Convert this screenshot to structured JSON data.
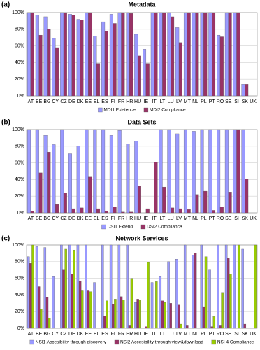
{
  "chart_data": [
    {
      "type": "bar",
      "panel": "(a)",
      "title": "Metadata",
      "categories": [
        "AT",
        "BE",
        "BG",
        "CY",
        "CZ",
        "DE",
        "DK",
        "EE",
        "EL",
        "ES",
        "FI",
        "FR",
        "HR",
        "HU",
        "IE",
        "IT",
        "LT",
        "LU",
        "LV",
        "MT",
        "NL",
        "PL",
        "PT",
        "RO",
        "SE",
        "SI",
        "SK",
        "UK"
      ],
      "series": [
        {
          "name": "MDI1 Existence",
          "color": "#9999ff",
          "values": [
            100,
            97,
            95,
            69,
            100,
            98,
            92,
            100,
            72,
            89,
            98,
            100,
            100,
            74,
            56,
            100,
            100,
            100,
            82,
            100,
            100,
            100,
            100,
            73,
            100,
            100,
            14,
            0
          ]
        },
        {
          "name": "MDI2 Compliance",
          "color": "#993366",
          "values": [
            100,
            73,
            80,
            58,
            100,
            97,
            91,
            100,
            39,
            78,
            87,
            100,
            99,
            48,
            39,
            100,
            100,
            95,
            64,
            100,
            100,
            100,
            100,
            71,
            100,
            100,
            14,
            0
          ]
        }
      ],
      "ylim": [
        0,
        100
      ],
      "yticks": [
        {
          "value": 0,
          "label": "0%"
        },
        {
          "value": 20,
          "label": "20%"
        },
        {
          "value": 40,
          "label": "40%"
        },
        {
          "value": 60,
          "label": "60%"
        },
        {
          "value": 80,
          "label": "80%"
        },
        {
          "value": 100,
          "label": "100%"
        }
      ],
      "grid": true
    },
    {
      "type": "bar",
      "panel": "(b)",
      "title": "Data Sets",
      "categories": [
        "AT",
        "BE",
        "BG",
        "CY",
        "CZ",
        "DE",
        "DK",
        "EE",
        "EL",
        "ES",
        "FI",
        "FR",
        "HR",
        "HU",
        "IE",
        "IT",
        "LT",
        "LU",
        "LV",
        "MT",
        "NL",
        "PL",
        "PT",
        "RO",
        "SE",
        "SI",
        "SK",
        "UK"
      ],
      "series": [
        {
          "name": "DSI1 Extend",
          "color": "#9999ff",
          "values": [
            100,
            100,
            93,
            82,
            100,
            71,
            80,
            100,
            100,
            100,
            93,
            99,
            83,
            86,
            0,
            0,
            100,
            100,
            95,
            100,
            98,
            100,
            100,
            100,
            100,
            100,
            100,
            0
          ]
        },
        {
          "name": "DSI2 Compliance",
          "color": "#993366",
          "values": [
            2,
            48,
            73,
            10,
            24,
            5,
            6,
            43,
            5,
            2,
            7,
            1,
            1,
            32,
            5,
            61,
            31,
            6,
            5,
            4,
            22,
            26,
            3,
            7,
            25,
            100,
            41,
            0
          ]
        }
      ],
      "ylim": [
        0,
        100
      ],
      "yticks": [
        {
          "value": 0,
          "label": "0%"
        },
        {
          "value": 20,
          "label": "20%"
        },
        {
          "value": 40,
          "label": "40%"
        },
        {
          "value": 60,
          "label": "60%"
        },
        {
          "value": 80,
          "label": "80%"
        },
        {
          "value": 100,
          "label": "100%"
        }
      ],
      "grid": true
    },
    {
      "type": "bar",
      "panel": "(c)",
      "title": "Network Services",
      "categories": [
        "AT",
        "BE",
        "BG",
        "CY",
        "CZ",
        "DE",
        "DK",
        "EE",
        "EL",
        "ES",
        "FI",
        "FR",
        "HR",
        "HU",
        "IE",
        "IT",
        "LT",
        "LU",
        "LV",
        "MT",
        "NL",
        "PL",
        "PT",
        "RO",
        "SE",
        "SI",
        "SK",
        "UK"
      ],
      "series": [
        {
          "name": "NSI1 Accesibility through discovery",
          "color": "#9999ff",
          "values": [
            86,
            98,
            97,
            62,
            100,
            100,
            100,
            100,
            55,
            100,
            100,
            100,
            100,
            31,
            0,
            55,
            62,
            80,
            83,
            100,
            88,
            100,
            70,
            100,
            100,
            100,
            95,
            0
          ]
        },
        {
          "name": "NSI2 Accesibility through view&download",
          "color": "#993366",
          "values": [
            78,
            50,
            37,
            0,
            70,
            65,
            57,
            45,
            0,
            15,
            29,
            38,
            3,
            35,
            2,
            0,
            33,
            30,
            28,
            3,
            90,
            26,
            2,
            3,
            84,
            0,
            5,
            0
          ]
        },
        {
          "name": "NSI 4 Compliance",
          "color": "#99cc00",
          "values": [
            100,
            23,
            12,
            0,
            95,
            94,
            45,
            44,
            0,
            33,
            35,
            34,
            60,
            34,
            79,
            56,
            31,
            0,
            5,
            0,
            0,
            86,
            14,
            43,
            65,
            100,
            0,
            100
          ]
        }
      ],
      "ylim": [
        0,
        100
      ],
      "yticks": [
        {
          "value": 0,
          "label": "0%"
        },
        {
          "value": 20,
          "label": "20%"
        },
        {
          "value": 40,
          "label": "40%"
        },
        {
          "value": 60,
          "label": "60%"
        },
        {
          "value": 80,
          "label": "80%"
        },
        {
          "value": 100,
          "label": "100%"
        }
      ],
      "grid": true
    }
  ]
}
